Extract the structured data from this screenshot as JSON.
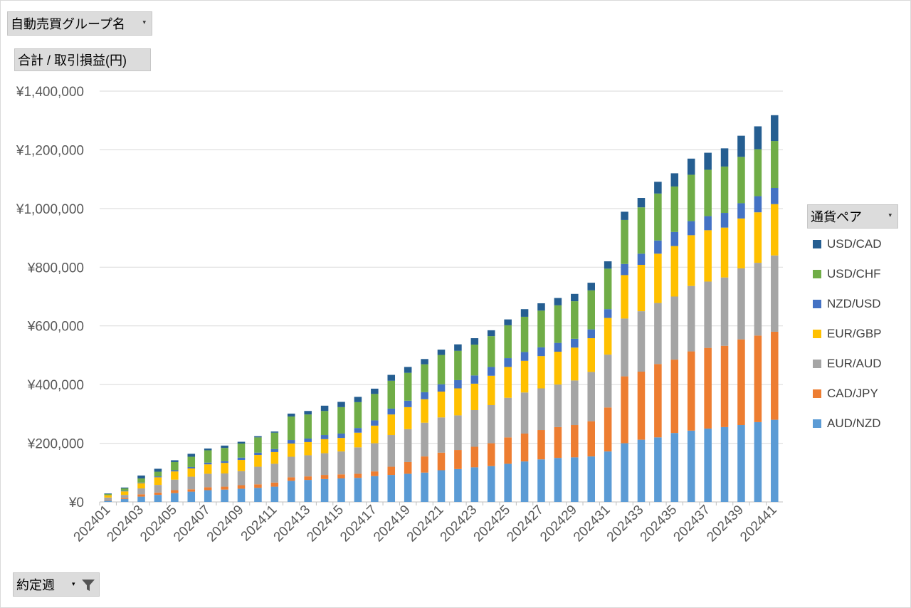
{
  "filters": {
    "group_field": "自動売買グループ名",
    "value_field": "合計 / 取引損益(円)",
    "axis_field": "約定週",
    "legend_field": "通貨ペア"
  },
  "icons": {
    "dropdown": "dropdown-arrow-icon",
    "filter": "filter-funnel-icon"
  },
  "chart_data": {
    "type": "bar",
    "stacked": true,
    "title": "",
    "xlabel": "",
    "ylabel": "",
    "ylim": [
      0,
      1400000
    ],
    "yticks": [
      0,
      200000,
      400000,
      600000,
      800000,
      1000000,
      1200000,
      1400000
    ],
    "ytick_labels": [
      "¥0",
      "¥200,000",
      "¥400,000",
      "¥600,000",
      "¥800,000",
      "¥1,000,000",
      "¥1,200,000",
      "¥1,400,000"
    ],
    "grid": true,
    "legend_position": "right",
    "categories": [
      "202401",
      "202402",
      "202403",
      "202404",
      "202405",
      "202406",
      "202407",
      "202408",
      "202409",
      "202410",
      "202411",
      "202412",
      "202413",
      "202414",
      "202415",
      "202416",
      "202417",
      "202418",
      "202419",
      "202420",
      "202421",
      "202422",
      "202423",
      "202424",
      "202425",
      "202426",
      "202427",
      "202428",
      "202429",
      "202430",
      "202431",
      "202432",
      "202433",
      "202434",
      "202435",
      "202436",
      "202437",
      "202438",
      "202439",
      "202440",
      "202441"
    ],
    "tick_labels": [
      "202401",
      "202403",
      "202405",
      "202407",
      "202409",
      "202411",
      "202413",
      "202415",
      "202417",
      "202419",
      "202421",
      "202423",
      "202425",
      "202427",
      "202429",
      "202431",
      "202433",
      "202435",
      "202437",
      "202439",
      "202441"
    ],
    "series": [
      {
        "name": "AUD/NZD",
        "color": "#5b9bd5",
        "values": [
          5000,
          10000,
          18000,
          24000,
          30000,
          35000,
          40000,
          42000,
          45000,
          48000,
          52000,
          72000,
          75000,
          78000,
          80000,
          82000,
          88000,
          92000,
          96000,
          100000,
          108000,
          112000,
          118000,
          122000,
          130000,
          138000,
          145000,
          150000,
          152000,
          155000,
          172000,
          200000,
          212000,
          220000,
          235000,
          243000,
          250000,
          255000,
          262000,
          272000,
          280000
        ]
      },
      {
        "name": "CAD/JPY",
        "color": "#ed7d31",
        "values": [
          2000,
          4000,
          8000,
          8000,
          10000,
          8000,
          10000,
          10000,
          12000,
          12000,
          14000,
          12000,
          12000,
          14000,
          14000,
          14000,
          16000,
          28000,
          40000,
          55000,
          60000,
          65000,
          70000,
          78000,
          90000,
          95000,
          100000,
          105000,
          110000,
          120000,
          150000,
          228000,
          232000,
          250000,
          250000,
          270000,
          275000,
          277000,
          292000,
          295000,
          300000
        ]
      },
      {
        "name": "EUR/AUD",
        "color": "#a5a5a5",
        "values": [
          8000,
          10000,
          20000,
          26000,
          36000,
          43000,
          46000,
          45000,
          48000,
          60000,
          64000,
          70000,
          72000,
          74000,
          78000,
          90000,
          96000,
          108000,
          112000,
          115000,
          120000,
          118000,
          125000,
          130000,
          135000,
          140000,
          142000,
          145000,
          152000,
          168000,
          180000,
          197000,
          206000,
          208000,
          215000,
          223000,
          226000,
          233000,
          242000,
          248000,
          260000
        ]
      },
      {
        "name": "EUR/GBP",
        "color": "#ffc000",
        "values": [
          8000,
          12000,
          18000,
          26000,
          28000,
          28000,
          32000,
          36000,
          38000,
          40000,
          40000,
          45000,
          45000,
          48000,
          46000,
          50000,
          60000,
          70000,
          75000,
          80000,
          88000,
          92000,
          90000,
          100000,
          105000,
          108000,
          110000,
          112000,
          112000,
          115000,
          125000,
          148000,
          158000,
          168000,
          172000,
          173000,
          175000,
          170000,
          170000,
          172000,
          175000
        ]
      },
      {
        "name": "NZD/USD",
        "color": "#4472c4",
        "values": [
          1000,
          2000,
          2000,
          3000,
          4000,
          5000,
          6000,
          6000,
          8000,
          8000,
          10000,
          12000,
          12000,
          14000,
          15000,
          16000,
          18000,
          20000,
          22000,
          24000,
          25000,
          28000,
          28000,
          30000,
          30000,
          30000,
          30000,
          30000,
          30000,
          30000,
          30000,
          38000,
          38000,
          45000,
          48000,
          48000,
          48000,
          50000,
          52000,
          55000,
          55000
        ]
      },
      {
        "name": "USD/CHF",
        "color": "#70ad47",
        "values": [
          3000,
          8000,
          14000,
          16000,
          28000,
          35000,
          42000,
          45000,
          48000,
          52000,
          56000,
          80000,
          82000,
          82000,
          90000,
          88000,
          90000,
          95000,
          95000,
          95000,
          100000,
          100000,
          105000,
          105000,
          112000,
          120000,
          125000,
          128000,
          128000,
          133000,
          138000,
          150000,
          158000,
          160000,
          155000,
          158000,
          158000,
          158000,
          158000,
          160000,
          160000
        ]
      },
      {
        "name": "USD/CAD",
        "color": "#255e91",
        "values": [
          2000,
          3000,
          10000,
          10000,
          6000,
          10000,
          6000,
          8000,
          6000,
          4000,
          4000,
          10000,
          12000,
          18000,
          18000,
          18000,
          18000,
          20000,
          20000,
          18000,
          18000,
          22000,
          22000,
          20000,
          20000,
          26000,
          25000,
          25000,
          25000,
          26000,
          25000,
          28000,
          32000,
          40000,
          45000,
          55000,
          58000,
          62000,
          72000,
          78000,
          88000
        ]
      }
    ]
  }
}
